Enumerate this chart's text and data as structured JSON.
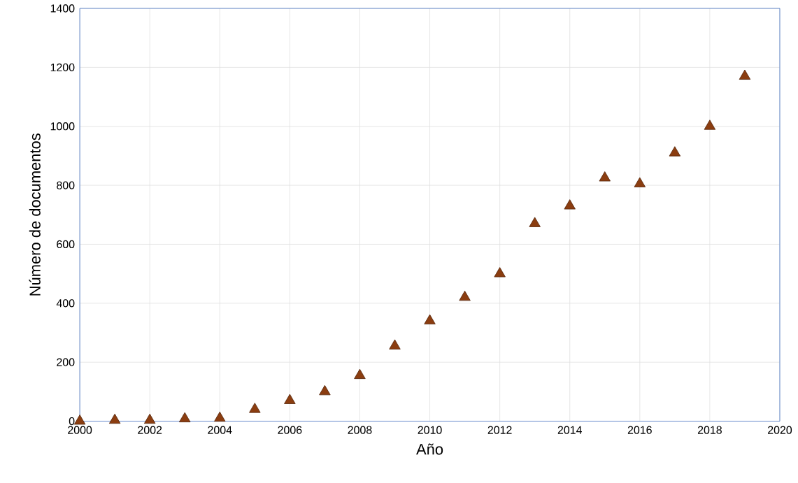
{
  "chart_data": {
    "type": "scatter",
    "xlabel": "Año",
    "ylabel": "Número de documentos",
    "x": [
      2000,
      2001,
      2002,
      2003,
      2004,
      2005,
      2006,
      2007,
      2008,
      2009,
      2010,
      2011,
      2012,
      2013,
      2014,
      2015,
      2016,
      2017,
      2018,
      2019
    ],
    "values": [
      0,
      3,
      3,
      8,
      10,
      40,
      70,
      100,
      155,
      255,
      340,
      420,
      500,
      670,
      730,
      825,
      805,
      910,
      1000,
      1170
    ],
    "color": "#8b3d10",
    "marker": "triangle",
    "grid": true,
    "xlim": [
      2000,
      2020
    ],
    "xticks": [
      2000,
      2002,
      2004,
      2006,
      2008,
      2010,
      2012,
      2014,
      2016,
      2018,
      2020
    ],
    "ylim": [
      0,
      1400
    ],
    "yticks": [
      0,
      200,
      400,
      600,
      800,
      1000,
      1200,
      1400
    ]
  }
}
